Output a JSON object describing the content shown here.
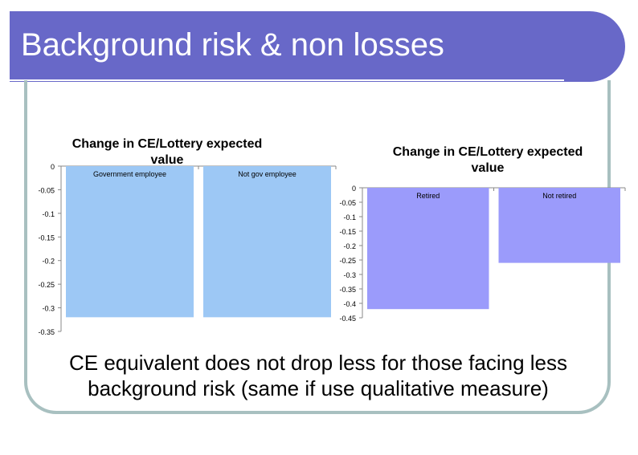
{
  "slide": {
    "title": "Background risk & non losses",
    "caption": "CE equivalent does not drop less for those facing less background risk (same if use qualitative measure)"
  },
  "colors": {
    "banner": "#6868c8",
    "bar_left": "#9dc8f5",
    "bar_right": "#9b9bfb",
    "frame": "#a8c0c0"
  },
  "chart_data": [
    {
      "type": "bar",
      "title": "Change in CE/Lottery expected value",
      "categories": [
        "Government employee",
        "Not gov employee"
      ],
      "values": [
        -0.32,
        -0.32
      ],
      "ylim": [
        -0.35,
        0
      ],
      "yticks": [
        "0",
        "-0.05",
        "-0.1",
        "-0.15",
        "-0.2",
        "-0.25",
        "-0.3",
        "-0.35"
      ],
      "xlabel": "",
      "ylabel": "",
      "legend": "none",
      "grid": false
    },
    {
      "type": "bar",
      "title": "Change in CE/Lottery expected value",
      "categories": [
        "Retired",
        "Not retired"
      ],
      "values": [
        -0.42,
        -0.26
      ],
      "ylim": [
        -0.45,
        0
      ],
      "yticks": [
        "0",
        "-0.05",
        "-0.1",
        "-0.15",
        "-0.2",
        "-0.25",
        "-0.3",
        "-0.35",
        "-0.4",
        "-0.45"
      ],
      "xlabel": "",
      "ylabel": "",
      "legend": "none",
      "grid": false
    }
  ]
}
